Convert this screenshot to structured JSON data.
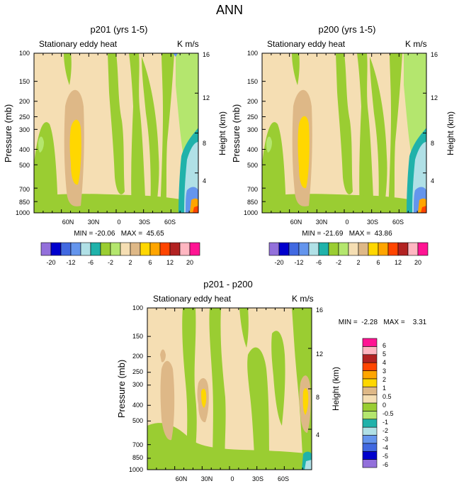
{
  "figure": {
    "title": "ANN"
  },
  "palettes": {
    "main": [
      "#9370db",
      "#0000cd",
      "#4169e1",
      "#6495ed",
      "#b0e0e6",
      "#20b2aa",
      "#9acd32",
      "#b4e66e",
      "#f5deb3",
      "#deb887",
      "#ffd700",
      "#ffa500",
      "#ff4500",
      "#b22222",
      "#ffb6c1",
      "#ff1493"
    ],
    "diff": [
      "#9370db",
      "#0000cd",
      "#4169e1",
      "#6495ed",
      "#b0e0e6",
      "#20b2aa",
      "#b4e66e",
      "#9acd32",
      "#f5deb3",
      "#deb887",
      "#ffd700",
      "#ffa500",
      "#ff4500",
      "#b22222",
      "#ffb6c1",
      "#ff1493"
    ]
  },
  "chart_data": [
    {
      "type": "heatmap",
      "panel_title": "p201 (yrs 1-5)",
      "left_label": "Stationary eddy heat",
      "right_label": "K m/s",
      "ylabel": "Pressure (mb)",
      "ylabel_right": "Height (km)",
      "x_ticks": [
        "60N",
        "30N",
        "0",
        "30S",
        "60S"
      ],
      "y_ticks": [
        "100",
        "150",
        "200",
        "250",
        "300",
        "400",
        "500",
        "700",
        "850",
        "1000"
      ],
      "y_right_ticks": [
        "16",
        "12",
        "8",
        "4"
      ],
      "stats": "MIN = -20.06   MAX =  45.65",
      "min": -20.06,
      "max": 45.65,
      "colorbar_labels": [
        "-20",
        "-12",
        "-6",
        "-2",
        "2",
        "6",
        "12",
        "20"
      ]
    },
    {
      "type": "heatmap",
      "panel_title": "p200 (yrs 1-5)",
      "left_label": "Stationary eddy heat",
      "right_label": "K m/s",
      "ylabel": "Pressure (mb)",
      "ylabel_right": "Height (km)",
      "x_ticks": [
        "60N",
        "30N",
        "0",
        "30S",
        "60S"
      ],
      "y_ticks": [
        "100",
        "150",
        "200",
        "250",
        "300",
        "400",
        "500",
        "700",
        "850",
        "1000"
      ],
      "y_right_ticks": [
        "16",
        "12",
        "8",
        "4"
      ],
      "stats": "MIN = -21.69   MAX =  43.86",
      "min": -21.69,
      "max": 43.86,
      "colorbar_labels": [
        "-20",
        "-12",
        "-6",
        "-2",
        "2",
        "6",
        "12",
        "20"
      ]
    },
    {
      "type": "heatmap",
      "panel_title": "p201 - p200",
      "left_label": "Stationary eddy heat",
      "right_label": "K m/s",
      "ylabel": "Pressure (mb)",
      "ylabel_right": "Height (km)",
      "x_ticks": [
        "60N",
        "30N",
        "0",
        "30S",
        "60S"
      ],
      "y_ticks": [
        "100",
        "150",
        "200",
        "250",
        "300",
        "400",
        "500",
        "700",
        "850",
        "1000"
      ],
      "y_right_ticks": [
        "16",
        "12",
        "8",
        "4"
      ],
      "stats": "MIN =  -2.28   MAX =    3.31",
      "min": -2.28,
      "max": 3.31,
      "colorbar_labels": [
        "6",
        "5",
        "4",
        "3",
        "2",
        "1",
        "0.5",
        "0",
        "-0.5",
        "-1",
        "-2",
        "-3",
        "-4",
        "-5",
        "-6"
      ]
    }
  ]
}
